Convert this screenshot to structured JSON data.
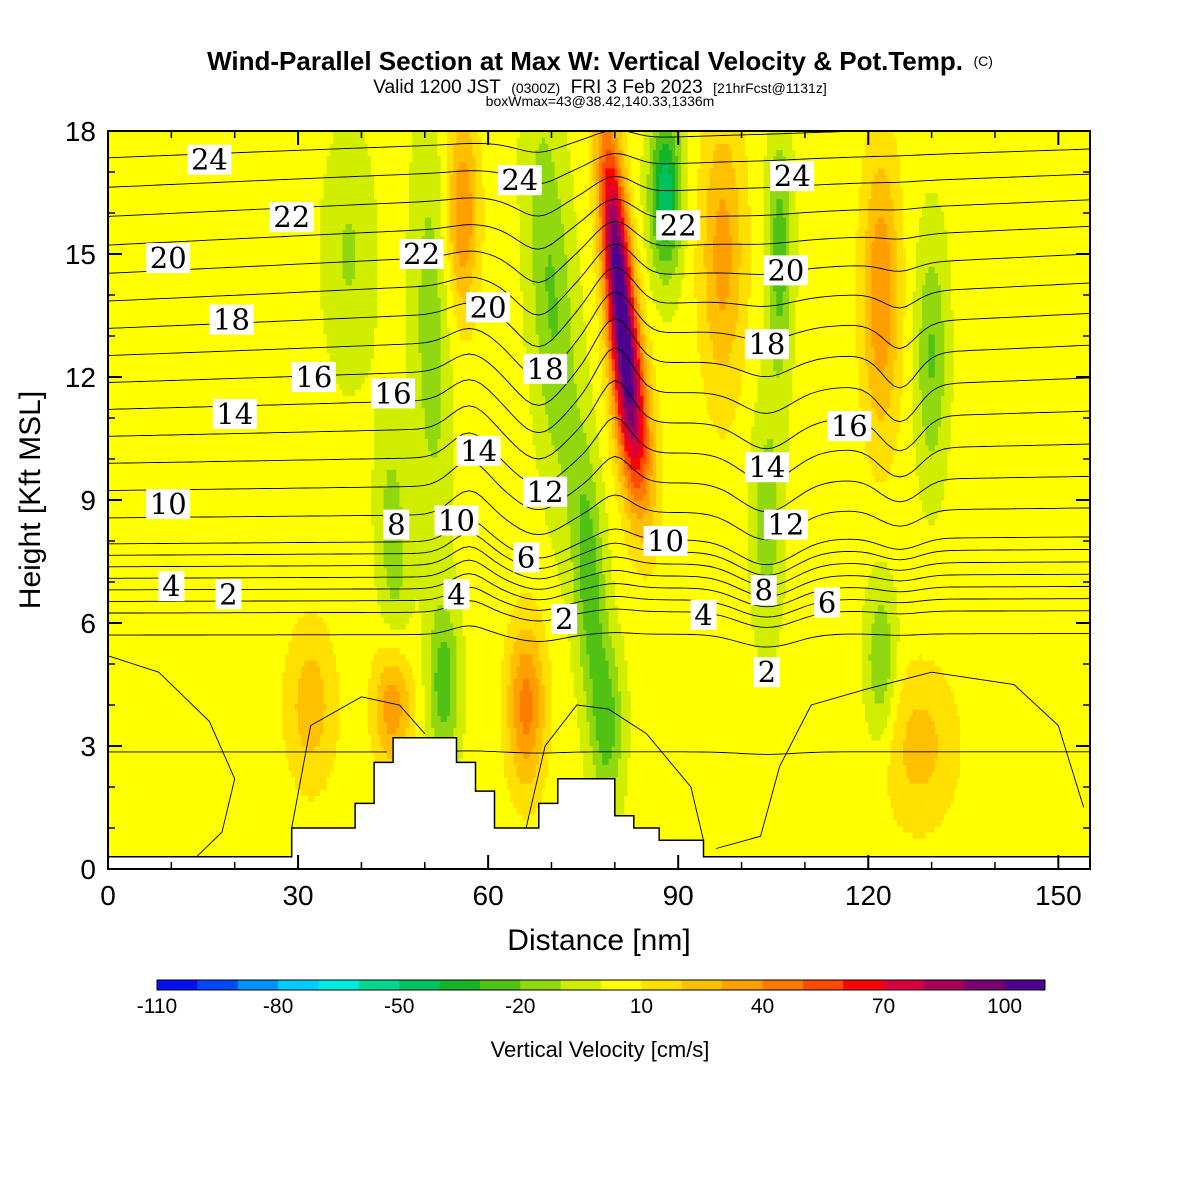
{
  "title": {
    "main": "Wind-Parallel Section at Max W: Vertical Velocity & Pot.Temp.",
    "main_mark": "(C)",
    "valid_prefix": "Valid 1200 JST",
    "valid_utc": "(0300Z)",
    "valid_date": "FRI 3 Feb 2023",
    "forecast": "[21hrFcst@1131z]",
    "boxmax": "boxWmax=43@38.42,140.33,1336m"
  },
  "chart_data": {
    "type": "heatmap",
    "xlabel": "Distance [nm]",
    "ylabel": "Height [Kft MSL]",
    "xlim": [
      0,
      155
    ],
    "ylim": [
      0,
      18
    ],
    "x_ticks": [
      "0",
      "30",
      "60",
      "90",
      "120",
      "150"
    ],
    "y_ticks": [
      "0",
      "3",
      "6",
      "9",
      "12",
      "15",
      "18"
    ],
    "colorbar": {
      "label": "Vertical Velocity [cm/s]",
      "tick_labels": [
        "-110",
        "-80",
        "-50",
        "-20",
        "10",
        "40",
        "70",
        "100"
      ],
      "tick_values": [
        -110,
        -80,
        -50,
        -20,
        10,
        40,
        70,
        100
      ],
      "range": [
        -110,
        110
      ],
      "colors": [
        "#0010f0",
        "#0048f8",
        "#0090ff",
        "#00ccff",
        "#00ece0",
        "#00d890",
        "#00c060",
        "#14b428",
        "#50c214",
        "#92d810",
        "#d2ee00",
        "#ffff00",
        "#ffe000",
        "#ffc000",
        "#ffa000",
        "#ff7a00",
        "#ff4a00",
        "#ff0000",
        "#d8003c",
        "#a8005a",
        "#780070",
        "#4c0090"
      ]
    },
    "terrain_kft": [
      {
        "x_start": 0,
        "x_end": 29,
        "height": 0.3
      },
      {
        "x_start": 29,
        "x_end": 39,
        "height": 1.0
      },
      {
        "x_start": 39,
        "x_end": 42,
        "height": 1.6
      },
      {
        "x_start": 42,
        "x_end": 45,
        "height": 2.6
      },
      {
        "x_start": 45,
        "x_end": 55,
        "height": 3.2
      },
      {
        "x_start": 55,
        "x_end": 58,
        "height": 2.6
      },
      {
        "x_start": 58,
        "x_end": 61,
        "height": 1.9
      },
      {
        "x_start": 61,
        "x_end": 68,
        "height": 1.0
      },
      {
        "x_start": 68,
        "x_end": 71,
        "height": 1.6
      },
      {
        "x_start": 71,
        "x_end": 80,
        "height": 2.2
      },
      {
        "x_start": 80,
        "x_end": 83,
        "height": 1.3
      },
      {
        "x_start": 83,
        "x_end": 87,
        "height": 1.0
      },
      {
        "x_start": 87,
        "x_end": 94,
        "height": 0.7
      },
      {
        "x_start": 94,
        "x_end": 155,
        "height": 0.3
      }
    ],
    "vertical_velocity_features": [
      {
        "x": 80.5,
        "z": 14.5,
        "w": 100,
        "sx": 2.2,
        "sz": 3.5,
        "tilt": -0.5
      },
      {
        "x": 83,
        "z": 11,
        "w": 55,
        "sx": 2.8,
        "sz": 2.5,
        "tilt": -0.5
      },
      {
        "x": 88,
        "z": 16.5,
        "w": -50,
        "sx": 2.5,
        "sz": 2.0,
        "tilt": 0
      },
      {
        "x": 70,
        "z": 14,
        "w": -25,
        "sx": 3.5,
        "sz": 5.0,
        "tilt": -0.35
      },
      {
        "x": 76,
        "z": 7,
        "w": -30,
        "sx": 2.5,
        "sz": 3.5,
        "tilt": -0.3
      },
      {
        "x": 51,
        "z": 13,
        "w": -20,
        "sx": 3.0,
        "sz": 5.0,
        "tilt": -0.1
      },
      {
        "x": 45,
        "z": 8,
        "w": -20,
        "sx": 2.5,
        "sz": 3.0,
        "tilt": -0.2
      },
      {
        "x": 53,
        "z": 4.5,
        "w": -30,
        "sx": 2.5,
        "sz": 2.0,
        "tilt": 0
      },
      {
        "x": 79,
        "z": 3.5,
        "w": -25,
        "sx": 2.5,
        "sz": 2.0,
        "tilt": 0
      },
      {
        "x": 56,
        "z": 16,
        "w": 35,
        "sx": 2.5,
        "sz": 2.5,
        "tilt": 0
      },
      {
        "x": 45,
        "z": 4,
        "w": 35,
        "sx": 3.0,
        "sz": 1.5,
        "tilt": 0
      },
      {
        "x": 66,
        "z": 4,
        "w": 40,
        "sx": 3.0,
        "sz": 2.0,
        "tilt": 0
      },
      {
        "x": 97,
        "z": 15,
        "w": 30,
        "sx": 3.5,
        "sz": 3.5,
        "tilt": 0
      },
      {
        "x": 106,
        "z": 15,
        "w": -30,
        "sx": 2.0,
        "sz": 3.0,
        "tilt": 0
      },
      {
        "x": 104,
        "z": 8.5,
        "w": -20,
        "sx": 2.5,
        "sz": 3.0,
        "tilt": 0
      },
      {
        "x": 122,
        "z": 14,
        "w": 35,
        "sx": 3.0,
        "sz": 3.5,
        "tilt": 0
      },
      {
        "x": 130,
        "z": 12.5,
        "w": -25,
        "sx": 2.5,
        "sz": 3.0,
        "tilt": 0
      },
      {
        "x": 122,
        "z": 5,
        "w": -25,
        "sx": 2.5,
        "sz": 2.0,
        "tilt": 0
      },
      {
        "x": 32,
        "z": 4,
        "w": 22,
        "sx": 4.0,
        "sz": 2.0,
        "tilt": 0
      },
      {
        "x": 38,
        "z": 15,
        "w": -15,
        "sx": 4.0,
        "sz": 3.0,
        "tilt": 0
      },
      {
        "x": 10,
        "z": 12,
        "w": 0,
        "sx": 6.0,
        "sz": 3.0,
        "tilt": 0
      },
      {
        "x": 128,
        "z": 3,
        "w": 20,
        "sx": 6.0,
        "sz": 2.0,
        "tilt": 0
      }
    ],
    "theta_contour_labels": [
      {
        "x": 16,
        "z": 17.3,
        "text": "24"
      },
      {
        "x": 29,
        "z": 15.9,
        "text": "22"
      },
      {
        "x": 9.5,
        "z": 14.9,
        "text": "20"
      },
      {
        "x": 19.5,
        "z": 13.4,
        "text": "18"
      },
      {
        "x": 32.5,
        "z": 12.0,
        "text": "16"
      },
      {
        "x": 20,
        "z": 11.1,
        "text": "14"
      },
      {
        "x": 9.5,
        "z": 8.9,
        "text": "10"
      },
      {
        "x": 10,
        "z": 6.9,
        "text": "4"
      },
      {
        "x": 19,
        "z": 6.7,
        "text": "2"
      },
      {
        "x": 45,
        "z": 11.6,
        "text": "16"
      },
      {
        "x": 49.5,
        "z": 15.0,
        "text": "22"
      },
      {
        "x": 60,
        "z": 13.7,
        "text": "20"
      },
      {
        "x": 65,
        "z": 16.8,
        "text": "24"
      },
      {
        "x": 69,
        "z": 12.2,
        "text": "18"
      },
      {
        "x": 58.5,
        "z": 10.2,
        "text": "14"
      },
      {
        "x": 69,
        "z": 9.2,
        "text": "12"
      },
      {
        "x": 55,
        "z": 8.5,
        "text": "10"
      },
      {
        "x": 45.5,
        "z": 8.4,
        "text": "8"
      },
      {
        "x": 66,
        "z": 7.6,
        "text": "6"
      },
      {
        "x": 55,
        "z": 6.7,
        "text": "4"
      },
      {
        "x": 72,
        "z": 6.1,
        "text": "2"
      },
      {
        "x": 90,
        "z": 15.7,
        "text": "22"
      },
      {
        "x": 108,
        "z": 16.9,
        "text": "24"
      },
      {
        "x": 107,
        "z": 14.6,
        "text": "20"
      },
      {
        "x": 104,
        "z": 12.8,
        "text": "18"
      },
      {
        "x": 117,
        "z": 10.8,
        "text": "16"
      },
      {
        "x": 104,
        "z": 9.8,
        "text": "14"
      },
      {
        "x": 107,
        "z": 8.4,
        "text": "12"
      },
      {
        "x": 88,
        "z": 8.0,
        "text": "10"
      },
      {
        "x": 103.5,
        "z": 6.8,
        "text": "8"
      },
      {
        "x": 113.5,
        "z": 6.5,
        "text": "6"
      },
      {
        "x": 94,
        "z": 6.2,
        "text": "4"
      },
      {
        "x": 104,
        "z": 4.8,
        "text": "2"
      }
    ]
  }
}
